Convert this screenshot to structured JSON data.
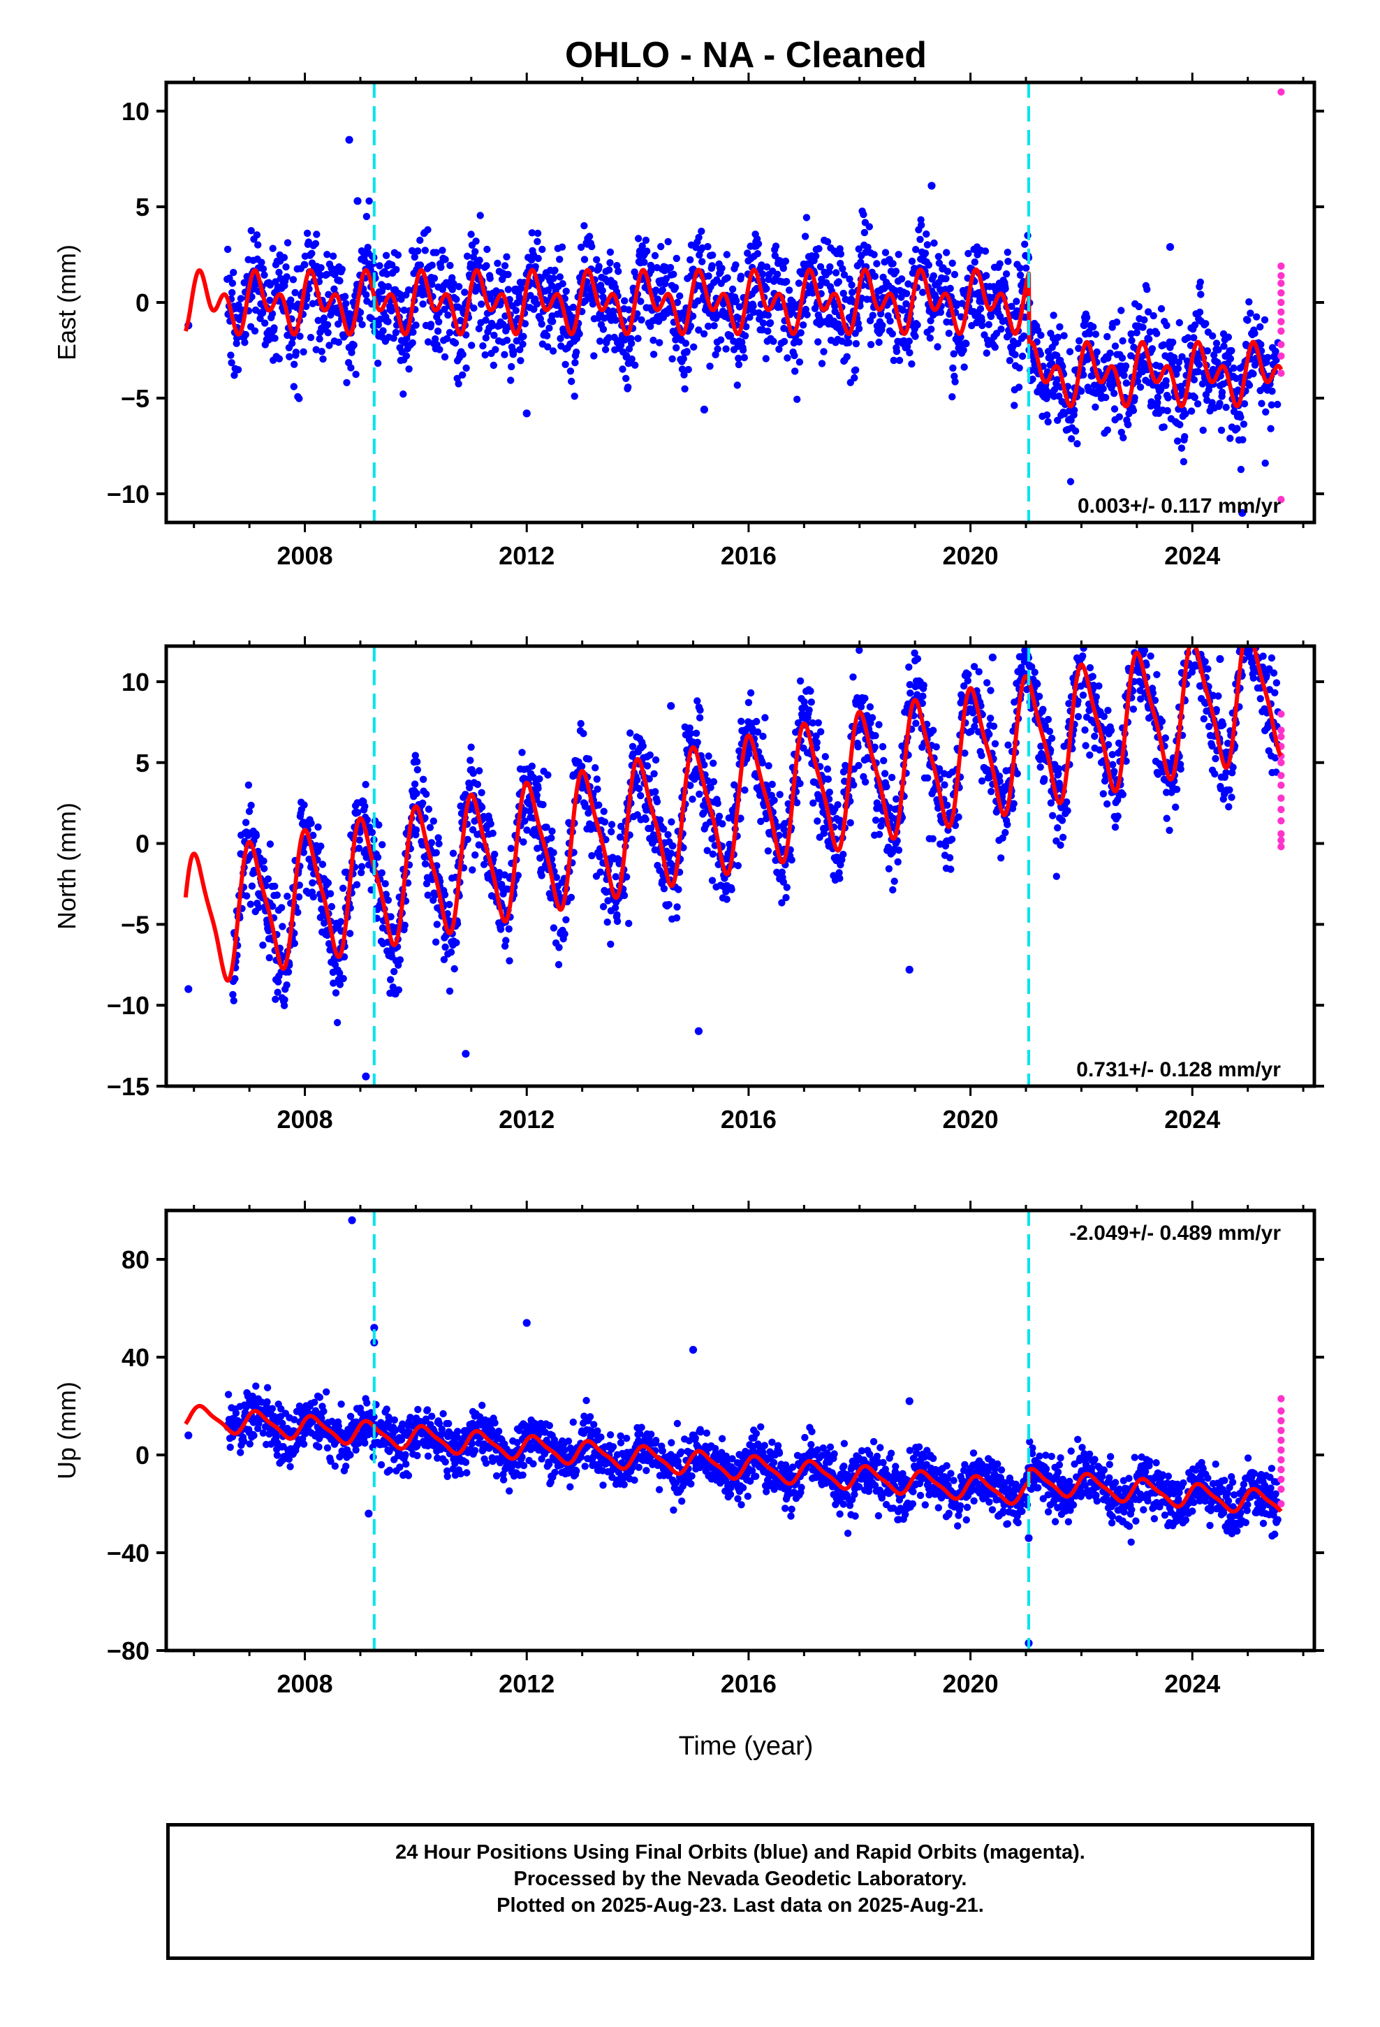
{
  "title": "OHLO  - NA - Cleaned",
  "xlabel": "Time (year)",
  "footer": {
    "line1": "24 Hour Positions Using Final Orbits (blue) and Rapid Orbits (magenta).",
    "line2": "Processed by the Nevada Geodetic Laboratory.",
    "line3": "Plotted on 2025-Aug-23. Last data on 2025-Aug-21."
  },
  "colors": {
    "final_orbits": "#0000ff",
    "rapid_orbits": "#ff33cc",
    "model": "#ff0000",
    "equipment_change": "#00e5ee",
    "axis": "#000000"
  },
  "chart_data": [
    {
      "type": "scatter",
      "ylabel": "East (mm)",
      "xlim": [
        2005.5,
        2026.2
      ],
      "ylim": [
        -11.5,
        11.5
      ],
      "yticks": [
        -10,
        -5,
        0,
        5,
        10
      ],
      "xticks": [
        2008,
        2012,
        2016,
        2020,
        2024
      ],
      "rate_label": "0.003+/- 0.117 mm/yr",
      "rate_position": "bottom-right",
      "equipment_changes": [
        2009.25,
        2021.05
      ],
      "model": {
        "rate": 0.003,
        "offset_start": 0.0,
        "step_at": 2021.05,
        "step": -3.8,
        "annual_amp": 0.9,
        "annual_phase": 0.3,
        "semiannual_amp": 1.0,
        "semiannual_phase": 0.6
      },
      "final_orbits": {
        "start": 2006.6,
        "end": 2025.55,
        "scatter": 1.4,
        "n": 2400,
        "outliers": [
          [
            2005.9,
            -1.2
          ],
          [
            2008.8,
            8.5
          ],
          [
            2008.95,
            5.3
          ],
          [
            2012.0,
            -5.8
          ],
          [
            2015.2,
            -5.6
          ],
          [
            2019.3,
            6.1
          ],
          [
            2023.6,
            2.9
          ],
          [
            2024.9,
            -11.0
          ]
        ]
      },
      "rapid_orbits": {
        "x": 2025.6,
        "y": [
          11.0,
          1.9,
          1.4,
          1.0,
          0.5,
          0.0,
          -0.5,
          -1.0,
          -1.5,
          -2.2,
          -2.8,
          -3.7,
          -10.3
        ]
      }
    },
    {
      "type": "scatter",
      "ylabel": "North (mm)",
      "xlim": [
        2005.5,
        2026.2
      ],
      "ylim": [
        -15,
        12.2
      ],
      "yticks": [
        -15,
        -10,
        -5,
        0,
        5,
        10
      ],
      "xticks": [
        2008,
        2012,
        2016,
        2020,
        2024
      ],
      "rate_label": "0.731+/- 0.128 mm/yr",
      "rate_position": "bottom-right",
      "equipment_changes": [
        2009.25,
        2021.05
      ],
      "model": {
        "rate": 0.731,
        "offset_start": -4.2,
        "step_at": 2021.05,
        "step": 0.0,
        "annual_amp": 3.8,
        "annual_phase": 1.2,
        "semiannual_amp": 0.9,
        "semiannual_phase": 2.5
      },
      "final_orbits": {
        "start": 2006.7,
        "end": 2025.55,
        "scatter": 1.6,
        "n": 2400,
        "outliers": [
          [
            2005.9,
            -9.0
          ],
          [
            2009.1,
            -14.4
          ],
          [
            2010.9,
            -13.0
          ],
          [
            2014.6,
            8.5
          ],
          [
            2015.1,
            -11.6
          ],
          [
            2018.9,
            -7.8
          ],
          [
            2020.4,
            11.5
          ],
          [
            2024.5,
            11.4
          ]
        ]
      },
      "rapid_orbits": {
        "x": 2025.6,
        "y": [
          8.0,
          7.0,
          6.6,
          6.0,
          5.4,
          5.0,
          4.2,
          3.6,
          2.8,
          2.1,
          1.4,
          0.6,
          0.2,
          -0.2
        ]
      }
    },
    {
      "type": "scatter",
      "ylabel": "Up (mm)",
      "xlim": [
        2005.5,
        2026.2
      ],
      "ylim": [
        -80,
        100
      ],
      "yticks": [
        -80,
        -40,
        0,
        40,
        80
      ],
      "xticks": [
        2008,
        2012,
        2016,
        2020,
        2024
      ],
      "rate_label": "-2.049+/- 0.489 mm/yr",
      "rate_position": "top-right",
      "equipment_changes": [
        2009.25,
        2021.05
      ],
      "model": {
        "rate": -2.049,
        "offset_start": 14.0,
        "step_at": 2021.05,
        "step": 5.0,
        "annual_amp": 4.5,
        "annual_phase": 0.5,
        "semiannual_amp": 1.2,
        "semiannual_phase": 1.0
      },
      "final_orbits": {
        "start": 2006.6,
        "end": 2025.55,
        "scatter": 5.5,
        "n": 2400,
        "outliers": [
          [
            2005.9,
            8.0
          ],
          [
            2008.85,
            96.0
          ],
          [
            2009.25,
            52.0
          ],
          [
            2009.25,
            46.0
          ],
          [
            2009.15,
            -24.0
          ],
          [
            2012.0,
            54.0
          ],
          [
            2015.0,
            43.0
          ],
          [
            2018.9,
            22.0
          ],
          [
            2021.05,
            -77.0
          ],
          [
            2021.05,
            -34.0
          ]
        ]
      },
      "rapid_orbits": {
        "x": 2025.6,
        "y": [
          23.0,
          18.0,
          14.0,
          10.0,
          6.0,
          2.0,
          -2.0,
          -6.0,
          -10.0,
          -14.0,
          -20.0
        ]
      }
    }
  ]
}
